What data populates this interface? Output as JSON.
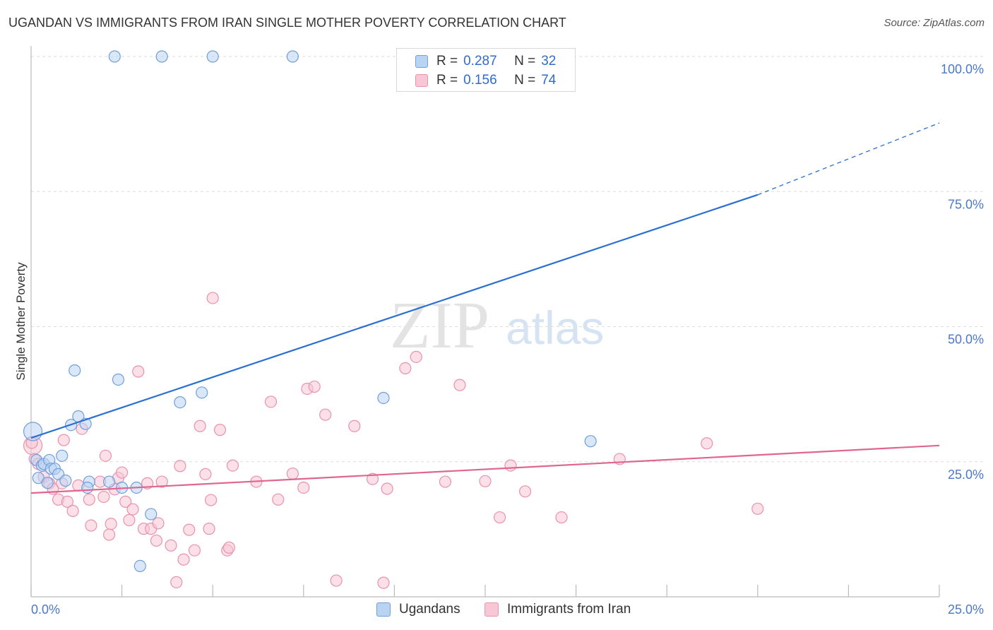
{
  "header": {
    "title": "UGANDAN VS IMMIGRANTS FROM IRAN SINGLE MOTHER POVERTY CORRELATION CHART",
    "source": "Source: ZipAtlas.com"
  },
  "watermark": {
    "zip": "ZIP",
    "atlas": "atlas"
  },
  "legend": {
    "rows": [
      {
        "r_label": "R =",
        "r_value": "0.287",
        "n_label": "N =",
        "n_value": "32"
      },
      {
        "r_label": "R =",
        "r_value": "0.156",
        "n_label": "N =",
        "n_value": "74"
      }
    ]
  },
  "bottom_legend": {
    "series1": "Ugandans",
    "series2": "Immigrants from Iran"
  },
  "colors": {
    "blue_fill": "#b9d4f2",
    "blue_stroke": "#6f9fdc",
    "blue_line": "#2a6fd1",
    "pink_fill": "#f8c7d6",
    "pink_stroke": "#e892ae",
    "pink_line": "#e0668f",
    "tick_text": "#4a79c8",
    "grid": "#dddddd"
  },
  "chart_data": {
    "type": "scatter",
    "title": "UGANDAN VS IMMIGRANTS FROM IRAN SINGLE MOTHER POVERTY CORRELATION CHART",
    "xlabel": "",
    "ylabel": "Single Mother Poverty",
    "xlim": [
      0,
      25
    ],
    "ylim": [
      0,
      100
    ],
    "x_tick_labels": [
      "0.0%",
      "25.0%"
    ],
    "y_tick_labels": [
      "100.0%",
      "75.0%",
      "50.0%",
      "25.0%"
    ],
    "y_ticks": [
      100,
      75,
      50,
      25
    ],
    "grid": true,
    "legend_position": "top-center",
    "series": [
      {
        "name": "Ugandans",
        "color": "#6f9fdc",
        "r": 0.287,
        "n": 32,
        "trend": {
          "x": [
            0,
            20
          ],
          "y": [
            29.4,
            74.4
          ],
          "dashed_to": [
            25,
            87.7
          ]
        },
        "points": [
          [
            0.05,
            30.6
          ],
          [
            0.15,
            25.3
          ],
          [
            0.2,
            22.0
          ],
          [
            0.3,
            24.3
          ],
          [
            0.35,
            24.6
          ],
          [
            0.45,
            21.1
          ],
          [
            0.5,
            25.3
          ],
          [
            0.55,
            23.7
          ],
          [
            0.65,
            23.7
          ],
          [
            0.75,
            22.7
          ],
          [
            0.85,
            26.1
          ],
          [
            0.95,
            21.5
          ],
          [
            1.1,
            31.8
          ],
          [
            1.2,
            41.9
          ],
          [
            1.3,
            33.4
          ],
          [
            1.5,
            32.0
          ],
          [
            1.6,
            21.3
          ],
          [
            1.55,
            20.2
          ],
          [
            2.15,
            21.3
          ],
          [
            2.4,
            40.2
          ],
          [
            2.5,
            20.2
          ],
          [
            2.9,
            20.2
          ],
          [
            3.0,
            5.7
          ],
          [
            3.3,
            15.3
          ],
          [
            4.1,
            36.0
          ],
          [
            4.7,
            37.8
          ],
          [
            2.3,
            100.0
          ],
          [
            3.6,
            100.0
          ],
          [
            5.0,
            100.0
          ],
          [
            7.2,
            100.0
          ],
          [
            9.7,
            36.8
          ],
          [
            15.4,
            28.8
          ]
        ]
      },
      {
        "name": "Immigrants from Iran",
        "color": "#e892ae",
        "r": 0.156,
        "n": 74,
        "trend": {
          "x": [
            0,
            25
          ],
          "y": [
            19.2,
            28.0
          ]
        },
        "points": [
          [
            0.05,
            28.0
          ],
          [
            0.1,
            25.5
          ],
          [
            0.2,
            24.6
          ],
          [
            0.35,
            22.2
          ],
          [
            0.5,
            21.0
          ],
          [
            0.6,
            20.0
          ],
          [
            0.75,
            18.0
          ],
          [
            0.85,
            21.0
          ],
          [
            1.0,
            17.6
          ],
          [
            1.15,
            15.9
          ],
          [
            1.3,
            20.6
          ],
          [
            1.4,
            31.1
          ],
          [
            1.6,
            18.0
          ],
          [
            1.65,
            13.2
          ],
          [
            1.9,
            21.3
          ],
          [
            2.0,
            18.5
          ],
          [
            2.05,
            26.1
          ],
          [
            2.15,
            11.5
          ],
          [
            2.2,
            13.5
          ],
          [
            2.4,
            22.0
          ],
          [
            2.5,
            23.0
          ],
          [
            2.6,
            17.6
          ],
          [
            2.7,
            14.2
          ],
          [
            2.8,
            16.2
          ],
          [
            2.95,
            41.7
          ],
          [
            3.1,
            12.6
          ],
          [
            3.2,
            21.0
          ],
          [
            3.3,
            12.6
          ],
          [
            3.45,
            10.4
          ],
          [
            3.6,
            21.3
          ],
          [
            3.85,
            9.5
          ],
          [
            4.0,
            2.7
          ],
          [
            4.1,
            24.2
          ],
          [
            4.2,
            6.9
          ],
          [
            4.35,
            12.4
          ],
          [
            4.5,
            8.6
          ],
          [
            4.65,
            31.6
          ],
          [
            4.8,
            22.7
          ],
          [
            4.9,
            12.6
          ],
          [
            4.95,
            17.9
          ],
          [
            5.0,
            55.3
          ],
          [
            5.2,
            30.9
          ],
          [
            5.4,
            8.6
          ],
          [
            5.45,
            9.1
          ],
          [
            5.55,
            24.3
          ],
          [
            6.2,
            21.3
          ],
          [
            6.6,
            36.1
          ],
          [
            6.8,
            18.0
          ],
          [
            7.2,
            22.8
          ],
          [
            7.5,
            20.2
          ],
          [
            7.6,
            38.5
          ],
          [
            7.8,
            38.9
          ],
          [
            8.1,
            33.7
          ],
          [
            8.4,
            3.0
          ],
          [
            8.9,
            31.6
          ],
          [
            9.4,
            21.8
          ],
          [
            9.7,
            2.6
          ],
          [
            9.8,
            20.0
          ],
          [
            10.3,
            42.3
          ],
          [
            10.6,
            44.4
          ],
          [
            11.4,
            21.3
          ],
          [
            11.8,
            39.2
          ],
          [
            12.5,
            21.4
          ],
          [
            12.9,
            14.7
          ],
          [
            13.2,
            24.3
          ],
          [
            13.6,
            19.5
          ],
          [
            14.6,
            14.7
          ],
          [
            16.2,
            25.5
          ],
          [
            18.6,
            28.4
          ],
          [
            20.0,
            16.3
          ],
          [
            0.02,
            28.5
          ],
          [
            0.9,
            29.0
          ],
          [
            2.3,
            19.9
          ],
          [
            3.5,
            13.6
          ]
        ]
      }
    ]
  }
}
